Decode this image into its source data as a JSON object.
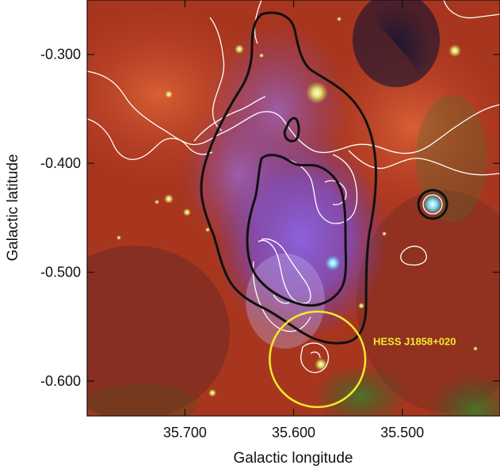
{
  "figure": {
    "xlabel": "Galactic longitude",
    "ylabel": "Galactic latitude",
    "x_ticks": [
      {
        "value": 35.7,
        "label": "35.700"
      },
      {
        "value": 35.6,
        "label": "35.600"
      },
      {
        "value": 35.5,
        "label": "35.500"
      }
    ],
    "y_ticks": [
      {
        "value": -0.3,
        "label": "-0.300"
      },
      {
        "value": -0.4,
        "label": "-0.400"
      },
      {
        "value": -0.5,
        "label": "-0.500"
      },
      {
        "value": -0.6,
        "label": "-0.600"
      }
    ],
    "x_range": [
      35.79,
      35.41
    ],
    "y_range": [
      -0.25,
      -0.632
    ],
    "annotation": {
      "label": "HESS J1858+020",
      "color": "#f2ea2a",
      "center": {
        "l": 35.578,
        "b": -0.58
      },
      "radius_deg": 0.044
    },
    "colors": {
      "black_contour": "#111111",
      "white_contour": "#ffffff",
      "background_red": "#b23a26",
      "nebula_purple": "#7a4fd6"
    },
    "image_layers": [
      "red infrared emission",
      "purple diffuse emission",
      "green emission"
    ],
    "contours": [
      "black contours",
      "white contours"
    ]
  }
}
